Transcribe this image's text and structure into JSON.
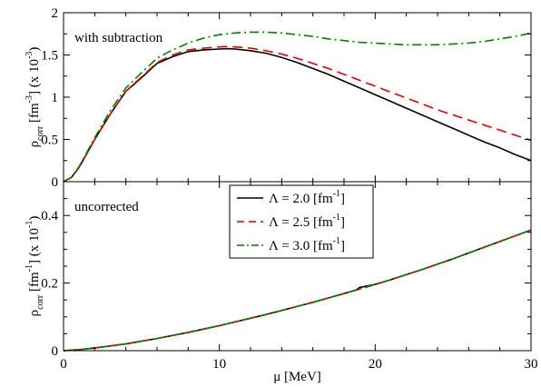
{
  "chart_data": [
    {
      "type": "line",
      "panel": "top",
      "annotation": "with subtraction",
      "ylabel_main": "ρ",
      "ylabel_sub": "corr",
      "ylabel_units": " [fm",
      "ylabel_units_exp": "-3",
      "ylabel_scale": "] (x 10",
      "ylabel_scale_exp": "-3",
      "ylabel_close": ")",
      "xlim": [
        0,
        30
      ],
      "ylim": [
        0,
        2
      ],
      "yticks": [
        0,
        0.5,
        1,
        1.5,
        2
      ],
      "ytick_labels": [
        "0",
        "0.5",
        "1",
        "1.5",
        "2"
      ],
      "grid": false,
      "series": [
        {
          "name": "Λ = 2.0 [fm⁻¹]",
          "color": "#000000",
          "dash": "solid",
          "x": [
            0,
            0.5,
            1,
            2,
            3,
            4,
            5,
            6,
            7,
            8,
            9,
            10,
            10.5,
            11,
            12,
            13,
            14,
            15,
            16,
            17,
            18,
            19,
            20,
            21,
            22,
            23,
            24,
            25,
            26,
            27,
            28,
            29,
            30
          ],
          "y": [
            0,
            0.05,
            0.17,
            0.5,
            0.8,
            1.07,
            1.23,
            1.4,
            1.48,
            1.54,
            1.56,
            1.57,
            1.575,
            1.57,
            1.55,
            1.52,
            1.47,
            1.41,
            1.34,
            1.27,
            1.19,
            1.11,
            1.03,
            0.95,
            0.87,
            0.79,
            0.71,
            0.63,
            0.55,
            0.47,
            0.4,
            0.32,
            0.25
          ]
        },
        {
          "name": "Λ = 2.5 [fm⁻¹]",
          "color": "#e00000",
          "dash": "dashed",
          "x": [
            0,
            0.5,
            1,
            2,
            3,
            4,
            5,
            6,
            7,
            8,
            9,
            10,
            10.5,
            11,
            12,
            13,
            14,
            15,
            16,
            17,
            18,
            19,
            20,
            21,
            22,
            23,
            24,
            25,
            26,
            27,
            28,
            29,
            30
          ],
          "y": [
            0,
            0.05,
            0.17,
            0.5,
            0.8,
            1.07,
            1.24,
            1.41,
            1.5,
            1.56,
            1.58,
            1.595,
            1.6,
            1.595,
            1.58,
            1.55,
            1.51,
            1.46,
            1.4,
            1.34,
            1.27,
            1.2,
            1.13,
            1.06,
            0.99,
            0.92,
            0.85,
            0.79,
            0.73,
            0.67,
            0.61,
            0.55,
            0.49
          ]
        },
        {
          "name": "Λ = 3.0 [fm⁻¹]",
          "color": "#008000",
          "dash": "dashdot",
          "x": [
            0,
            0.5,
            1,
            2,
            3,
            4,
            5,
            6,
            7,
            8,
            9,
            10,
            11,
            12,
            13,
            14,
            15,
            16,
            17,
            18,
            19,
            20,
            21,
            22,
            23,
            24,
            25,
            26,
            27,
            28,
            29,
            30
          ],
          "y": [
            0,
            0.05,
            0.18,
            0.52,
            0.84,
            1.11,
            1.29,
            1.46,
            1.56,
            1.64,
            1.7,
            1.74,
            1.76,
            1.77,
            1.77,
            1.76,
            1.74,
            1.72,
            1.69,
            1.67,
            1.65,
            1.64,
            1.63,
            1.62,
            1.62,
            1.62,
            1.63,
            1.64,
            1.66,
            1.69,
            1.72,
            1.76
          ]
        }
      ]
    },
    {
      "type": "line",
      "panel": "bottom",
      "annotation": "uncorrected",
      "xlabel": "μ [MeV]",
      "ylabel_main": "ρ",
      "ylabel_sub": "corr",
      "ylabel_units": " [fm",
      "ylabel_units_exp": "-1",
      "ylabel_scale": "] (x 10",
      "ylabel_scale_exp": "-1",
      "ylabel_close": ")",
      "xlim": [
        0,
        30
      ],
      "ylim": [
        0,
        0.5
      ],
      "xticks": [
        0,
        10,
        20,
        30
      ],
      "xtick_labels": [
        "0",
        "10",
        "20",
        "30"
      ],
      "yticks": [
        0,
        0.2,
        0.4
      ],
      "ytick_labels": [
        "0",
        "0.2",
        "0.4"
      ],
      "grid": false,
      "legend": {
        "position": "upper-center",
        "entries": [
          {
            "prefix": "Λ = 2.0 [fm",
            "exp": "-1",
            "suffix": "]"
          },
          {
            "prefix": "Λ = 2.5 [fm",
            "exp": "-1",
            "suffix": "]"
          },
          {
            "prefix": "Λ = 3.0 [fm",
            "exp": "-1",
            "suffix": "]"
          }
        ]
      },
      "series": [
        {
          "name": "Λ = 2.0 [fm⁻¹]",
          "color": "#000000",
          "dash": "solid",
          "x": [
            0,
            1,
            2,
            3,
            4,
            5,
            6,
            7,
            8,
            9,
            10,
            11,
            12,
            13,
            14,
            15,
            16,
            17,
            18,
            18.8,
            19,
            20,
            21,
            22,
            23,
            24,
            25,
            26,
            27,
            28,
            29,
            30
          ],
          "y": [
            0,
            0.003,
            0.008,
            0.014,
            0.02,
            0.028,
            0.036,
            0.045,
            0.054,
            0.064,
            0.074,
            0.085,
            0.096,
            0.107,
            0.119,
            0.131,
            0.143,
            0.156,
            0.169,
            0.18,
            0.187,
            0.196,
            0.21,
            0.225,
            0.24,
            0.256,
            0.272,
            0.289,
            0.306,
            0.323,
            0.34,
            0.357
          ]
        },
        {
          "name": "Λ = 2.5 [fm⁻¹]",
          "color": "#e00000",
          "dash": "dashed",
          "x": [
            0,
            1,
            2,
            3,
            4,
            5,
            6,
            7,
            8,
            9,
            10,
            11,
            12,
            13,
            14,
            15,
            16,
            17,
            18,
            19,
            20,
            21,
            22,
            23,
            24,
            25,
            26,
            27,
            28,
            29,
            30
          ],
          "y": [
            0,
            0.003,
            0.008,
            0.014,
            0.02,
            0.028,
            0.036,
            0.045,
            0.054,
            0.064,
            0.074,
            0.085,
            0.096,
            0.107,
            0.119,
            0.131,
            0.143,
            0.156,
            0.169,
            0.182,
            0.196,
            0.21,
            0.225,
            0.24,
            0.256,
            0.272,
            0.289,
            0.306,
            0.323,
            0.34,
            0.357
          ]
        },
        {
          "name": "Λ = 3.0 [fm⁻¹]",
          "color": "#008000",
          "dash": "dashdot",
          "x": [
            0,
            1,
            2,
            3,
            4,
            5,
            6,
            7,
            8,
            9,
            10,
            11,
            12,
            13,
            14,
            15,
            16,
            17,
            18,
            19,
            20,
            21,
            22,
            23,
            24,
            25,
            26,
            27,
            28,
            29,
            30
          ],
          "y": [
            0,
            0.003,
            0.008,
            0.014,
            0.02,
            0.028,
            0.036,
            0.045,
            0.054,
            0.064,
            0.074,
            0.085,
            0.096,
            0.107,
            0.119,
            0.131,
            0.143,
            0.156,
            0.169,
            0.182,
            0.196,
            0.21,
            0.225,
            0.24,
            0.256,
            0.272,
            0.289,
            0.306,
            0.323,
            0.34,
            0.357
          ]
        }
      ]
    }
  ]
}
